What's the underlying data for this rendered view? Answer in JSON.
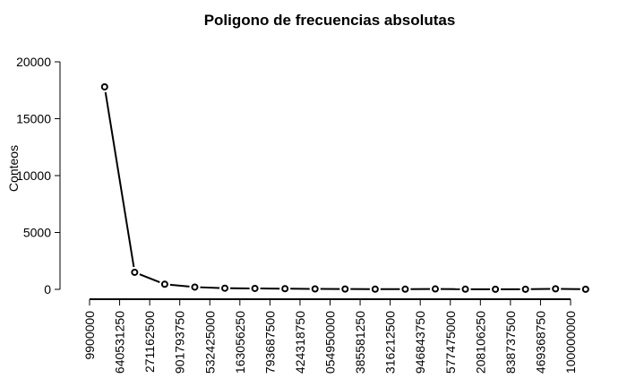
{
  "chart_data": {
    "type": "line",
    "title": "Poligono de frecuencias absolutas",
    "xlabel": "",
    "ylabel": "Conteos",
    "ylim": [
      0,
      20000
    ],
    "y_ticks": [
      0,
      5000,
      10000,
      15000,
      20000
    ],
    "y_tick_labels": [
      "0",
      "5000",
      "10000",
      "15000",
      "20000"
    ],
    "x_tick_labels": [
      "9900000",
      "640531250",
      "271162500",
      "901793750",
      "532425000",
      "163056250",
      "793687500",
      "424318750",
      "054950000",
      "385581250",
      "316212500",
      "946843750",
      "577475000",
      "208106250",
      "838737500",
      "469368750",
      "100000000"
    ],
    "values": [
      17800,
      1500,
      450,
      200,
      100,
      80,
      60,
      40,
      30,
      20,
      15,
      35,
      15,
      10,
      10,
      50,
      10
    ],
    "points_style": "open-circle",
    "grid": false,
    "legend": "none",
    "line_color": "#000000"
  }
}
